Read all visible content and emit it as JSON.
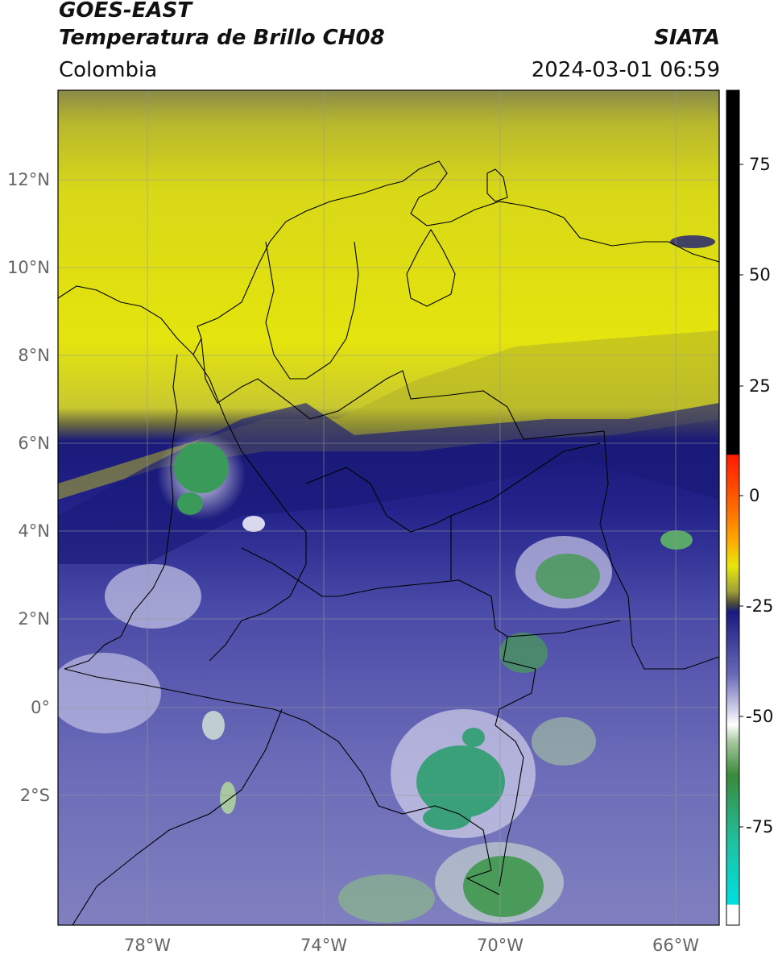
{
  "header": {
    "satellite": "GOES-EAST",
    "product": "Temperatura de Brillo CH08",
    "region": "Colombia",
    "organization": "SIATA",
    "timestamp": "2024-03-01 06:59"
  },
  "map": {
    "lat_labels": [
      "12°N",
      "10°N",
      "8°N",
      "6°N",
      "4°N",
      "2°N",
      "0°",
      "2°S"
    ],
    "lon_labels": [
      "78°W",
      "74°W",
      "70°W",
      "66°W"
    ]
  },
  "colorbar": {
    "tick_labels": [
      "75",
      "50",
      "25",
      "0",
      "-25",
      "-50",
      "-75"
    ],
    "colors": {
      "warm": "#000000",
      "hot": "#ff1a00",
      "orange": "#ff9900",
      "yellow": "#e7e70c",
      "olive": "#5a5a3a",
      "navy": "#1a1a8a",
      "lavender": "#c8c8e6",
      "white": "#ffffff",
      "green": "#3a8a3a",
      "teal": "#20c0a0",
      "cyan": "#00e0e0"
    }
  }
}
